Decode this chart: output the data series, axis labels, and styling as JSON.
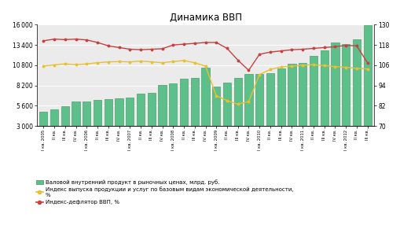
{
  "title": "Динамика ВВП",
  "labels": [
    "I кв. 2005",
    "II кв.",
    "III кв.",
    "IV кв.",
    "I кв. 2006",
    "II кв.",
    "III кв.",
    "IV кв.",
    "I кв. 2007",
    "II кв.",
    "III кв.",
    "IV кв.",
    "I кв. 2008",
    "II кв.",
    "III кв.",
    "IV кв.",
    "I кв. 2009",
    "II кв.",
    "III кв.",
    "IV кв.",
    "I кв. 2010",
    "II кв.",
    "III кв.",
    "IV кв.",
    "I кв. 2011",
    "II кв.",
    "III кв.",
    "IV кв.",
    "I кв. 2012",
    "II кв.",
    "III кв."
  ],
  "gdp": [
    4800,
    5100,
    5500,
    6100,
    6100,
    6300,
    6500,
    6600,
    6700,
    7200,
    7300,
    8300,
    8500,
    9100,
    9200,
    10500,
    8100,
    8600,
    9200,
    9700,
    9700,
    9800,
    10400,
    11000,
    11100,
    12000,
    12700,
    13700,
    13500,
    14100,
    15900
  ],
  "index_output": [
    105.5,
    106.2,
    106.8,
    106.3,
    106.8,
    107.5,
    108.0,
    108.2,
    108.0,
    108.5,
    108.0,
    107.5,
    108.2,
    108.8,
    107.5,
    105.5,
    88.0,
    85.0,
    83.0,
    84.5,
    100.5,
    103.5,
    105.0,
    105.5,
    106.0,
    106.3,
    105.8,
    105.2,
    104.8,
    104.2,
    103.8
  ],
  "deflator": [
    120.5,
    121.5,
    121.2,
    121.5,
    121.0,
    119.5,
    117.5,
    116.5,
    115.5,
    115.2,
    115.5,
    115.8,
    118.0,
    118.5,
    119.0,
    119.5,
    119.5,
    116.0,
    109.0,
    103.0,
    112.5,
    113.8,
    114.5,
    115.2,
    115.5,
    116.0,
    116.5,
    117.0,
    117.8,
    117.5,
    107.5
  ],
  "bar_color": "#5DBF8A",
  "bar_edge_color": "#3a9060",
  "bar_hatch_color": "#3a9060",
  "line_output_color": "#E8C030",
  "line_deflator_color": "#C84040",
  "left_ylim": [
    3000,
    16000
  ],
  "left_yticks": [
    3000,
    5600,
    8200,
    10800,
    13400,
    16000
  ],
  "right_ylim": [
    70,
    130
  ],
  "right_yticks": [
    70,
    82,
    94,
    106,
    118,
    130
  ],
  "legend1": "Валовой внутренний продукт в рыночных ценах, млрд. руб.",
  "legend2": "Индекс выпуска продукции и услуг по базовым видам экономической деятельности,\n%",
  "legend3": "Индекс-дефлятор ВВП, %",
  "bg_color": "#FFFFFF",
  "plot_bg_color": "#EBEBEB",
  "grid_color": "#FFFFFF"
}
